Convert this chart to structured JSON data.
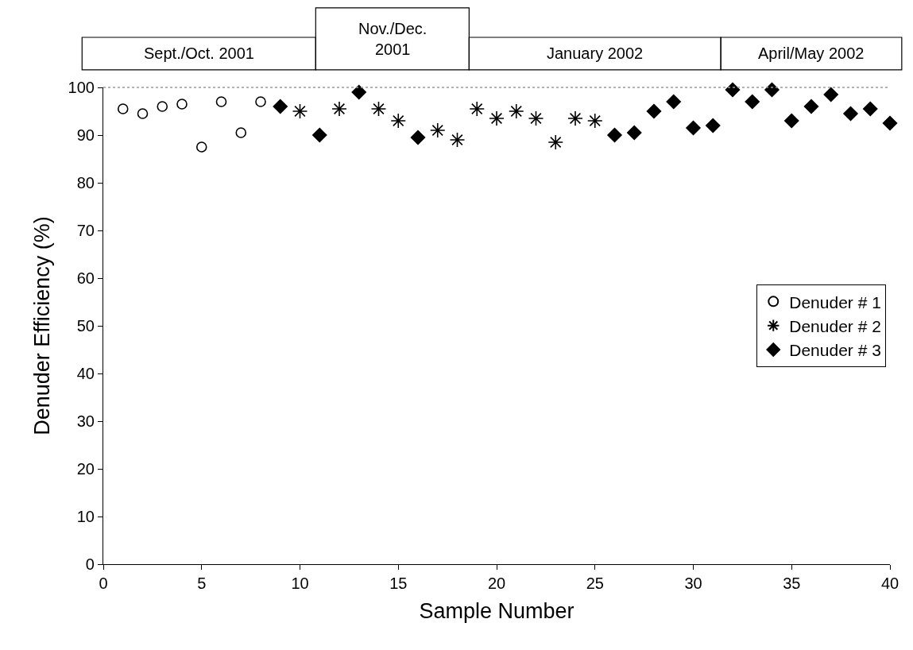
{
  "chart_data": {
    "type": "scatter",
    "xlabel": "Sample Number",
    "ylabel": "Denuder Efficiency (%)",
    "xlim": [
      0,
      40
    ],
    "xticks": [
      0,
      5,
      10,
      15,
      20,
      25,
      30,
      35,
      40
    ],
    "ylim": [
      0,
      100
    ],
    "yticks": [
      0,
      10,
      20,
      30,
      40,
      50,
      60,
      70,
      80,
      90,
      100
    ],
    "legend": "right",
    "annotations": [
      "Sept./Oct. 2001",
      "Nov./Dec.\n2001",
      "January 2002",
      "April/May 2002"
    ],
    "series": [
      {
        "name": "Denuder # 1",
        "color": "#000000",
        "marker": "circle-open",
        "x": [
          1,
          2,
          3,
          4,
          5,
          6,
          7,
          8
        ],
        "values": [
          95.5,
          94.5,
          96,
          96.5,
          87.5,
          97,
          90.5,
          97
        ]
      },
      {
        "name": "Denuder # 2",
        "color": "#000000",
        "marker": "cross",
        "x": [
          10,
          12,
          14,
          15,
          17,
          18,
          19,
          20,
          21,
          22,
          23,
          24,
          25
        ],
        "values": [
          95,
          95.5,
          95.5,
          93,
          91,
          89,
          95.5,
          93.5,
          95,
          93.5,
          88.5,
          93.5,
          93
        ]
      },
      {
        "name": "Denuder # 3",
        "color": "#000000",
        "marker": "diamond",
        "x": [
          9,
          11,
          13,
          16,
          26,
          27,
          28,
          29,
          30,
          31,
          32,
          33,
          34,
          35,
          36,
          37,
          38,
          39,
          40
        ],
        "values": [
          96,
          90,
          99,
          89.5,
          90,
          90.5,
          95,
          97,
          91.5,
          92,
          99.5,
          97,
          99.5,
          93,
          96,
          98.5,
          94.5,
          95.5,
          92.5
        ]
      }
    ]
  }
}
